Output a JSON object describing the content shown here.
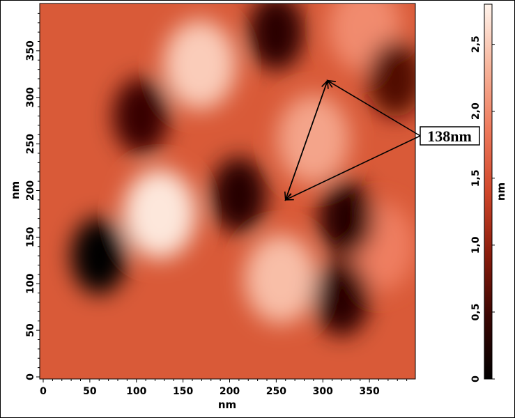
{
  "chart_data": {
    "type": "heatmap",
    "xlabel": "nm",
    "ylabel": "nm",
    "xlim": [
      0,
      395
    ],
    "ylim": [
      0,
      395
    ],
    "x_ticks": [
      "0",
      "50",
      "100",
      "150",
      "200",
      "250",
      "300",
      "350"
    ],
    "y_ticks": [
      "0",
      "50",
      "100",
      "150",
      "200",
      "250",
      "300",
      "350"
    ],
    "colorbar": {
      "label": "nm",
      "range": [
        0,
        2.8
      ],
      "ticks": [
        "0",
        "0,5",
        "1,0",
        "1,5",
        "2,0",
        "2,5"
      ],
      "colormap": [
        "#000000",
        "#3a0603",
        "#8a1c0c",
        "#d0462a",
        "#ee7a5c",
        "#f7b59c",
        "#fff4ec"
      ]
    },
    "features": [
      {
        "x": 168,
        "y": 335,
        "height": 2.5
      },
      {
        "x": 125,
        "y": 175,
        "height": 2.7
      },
      {
        "x": 255,
        "y": 105,
        "height": 2.4
      },
      {
        "x": 290,
        "y": 255,
        "height": 2.2
      },
      {
        "x": 345,
        "y": 375,
        "height": 2.0
      },
      {
        "x": 360,
        "y": 140,
        "height": 1.9
      },
      {
        "x": 60,
        "y": 130,
        "height": 0.0
      },
      {
        "x": 210,
        "y": 195,
        "height": 0.3
      },
      {
        "x": 325,
        "y": 170,
        "height": 0.3
      },
      {
        "x": 320,
        "y": 85,
        "height": 0.35
      },
      {
        "x": 105,
        "y": 280,
        "height": 0.45
      },
      {
        "x": 250,
        "y": 370,
        "height": 0.35
      },
      {
        "x": 378,
        "y": 320,
        "height": 0.6
      }
    ],
    "annotation": {
      "text": "138nm",
      "arrow_points": [
        {
          "x": 305,
          "y": 318
        },
        {
          "x": 260,
          "y": 190
        }
      ]
    }
  }
}
